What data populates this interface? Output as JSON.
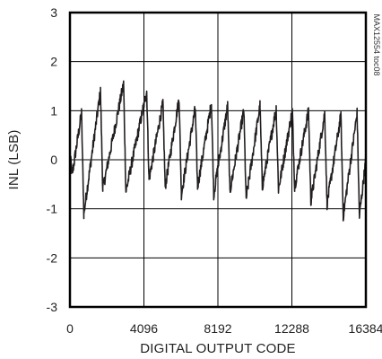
{
  "chart_data": {
    "type": "line",
    "title": "",
    "xlabel": "DIGITAL OUTPUT CODE",
    "ylabel": "INL (LSB)",
    "annotation": "MAX12554 toc08",
    "xlim": [
      0,
      16384
    ],
    "ylim": [
      -3,
      3
    ],
    "x_ticks": [
      0,
      4096,
      8192,
      12288,
      16384
    ],
    "y_ticks": [
      -3,
      -2,
      -1,
      0,
      1,
      2,
      3
    ],
    "grid": true,
    "legend": "none",
    "series": [
      {
        "color": "#231f20",
        "noise_band_lsb": 0.12,
        "x": [
          0,
          128,
          640,
          769,
          1690,
          1818,
          2970,
          3098,
          4250,
          4378,
          5146,
          5274,
          6042,
          6170,
          6938,
          7066,
          7834,
          7962,
          8730,
          8858,
          9626,
          9754,
          10522,
          10650,
          11418,
          11546,
          12314,
          12442,
          13210,
          13338,
          14106,
          14234,
          15002,
          15130,
          15898,
          16026,
          16384
        ],
        "y": [
          0.1,
          -0.3,
          0.95,
          -1.1,
          1.4,
          -0.6,
          1.55,
          -0.65,
          1.4,
          -0.4,
          1.15,
          -0.55,
          1.25,
          -0.7,
          1.05,
          -0.55,
          1.15,
          -0.7,
          1.1,
          -0.65,
          1.0,
          -0.8,
          1.1,
          -0.55,
          1.05,
          -0.6,
          1.0,
          -0.55,
          1.0,
          -0.85,
          0.95,
          -0.9,
          0.9,
          -1.15,
          0.95,
          -1.15,
          0.0
        ]
      }
    ]
  }
}
